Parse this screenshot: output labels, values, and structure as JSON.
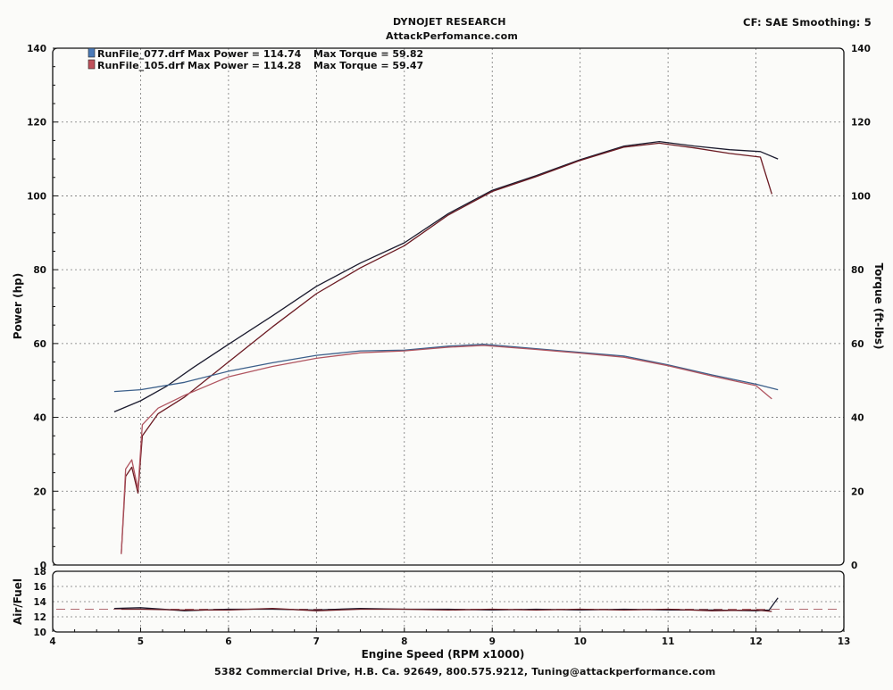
{
  "header": {
    "company": "DYNOJET RESEARCH",
    "site": "AttackPerfomance.com",
    "correction": "CF: SAE  Smoothing: 5"
  },
  "footer": {
    "address": "5382 Commercial Drive, H.B. Ca. 92649, 800.575.9212, Tuning@attackperformance.com"
  },
  "colors": {
    "run1": "#1b1b2e",
    "run2": "#6b1a22",
    "run1_tq": "#3b5f8a",
    "run2_tq": "#b05560",
    "grid": "#777777"
  },
  "chart_data": [
    {
      "type": "line",
      "ylabel": "Power (hp)",
      "y2label": "Torque (ft-lbs)",
      "xlim": [
        4,
        13
      ],
      "ylim": [
        0,
        140
      ],
      "y2lim": [
        0,
        140
      ],
      "grid": true,
      "legend_position": "top-left",
      "legend": [
        {
          "file": "RunFile_077.drf",
          "power_text": "Max Power = 114.74",
          "torque_text": "Max Torque = 59.82"
        },
        {
          "file": "RunFile_105.drf",
          "power_text": "Max Power = 114.28",
          "torque_text": "Max Torque = 59.47"
        }
      ],
      "yticks": [
        0,
        20,
        40,
        60,
        80,
        100,
        120,
        140
      ],
      "y2ticks": [
        0,
        20,
        40,
        60,
        80,
        100,
        120,
        140
      ],
      "series": [
        {
          "run": 1,
          "quantity": "power",
          "axis": "left",
          "points": [
            [
              4.7,
              41.5
            ],
            [
              5.0,
              44.5
            ],
            [
              5.3,
              48.5
            ],
            [
              5.6,
              53.5
            ],
            [
              6.0,
              59.8
            ],
            [
              6.5,
              67.5
            ],
            [
              7.0,
              75.5
            ],
            [
              7.5,
              81.8
            ],
            [
              8.0,
              87.3
            ],
            [
              8.5,
              95.2
            ],
            [
              9.0,
              101.5
            ],
            [
              9.5,
              105.5
            ],
            [
              10.0,
              109.8
            ],
            [
              10.5,
              113.5
            ],
            [
              10.9,
              114.7
            ],
            [
              11.3,
              113.5
            ],
            [
              11.7,
              112.5
            ],
            [
              12.05,
              112.0
            ],
            [
              12.25,
              110.0
            ]
          ]
        },
        {
          "run": 2,
          "quantity": "power",
          "axis": "left",
          "points": [
            [
              4.78,
              3.0
            ],
            [
              4.83,
              24.0
            ],
            [
              4.9,
              26.5
            ],
            [
              4.97,
              19.5
            ],
            [
              5.02,
              35.0
            ],
            [
              5.2,
              41.0
            ],
            [
              5.5,
              45.5
            ],
            [
              6.0,
              55.0
            ],
            [
              6.5,
              64.5
            ],
            [
              7.0,
              73.5
            ],
            [
              7.5,
              80.5
            ],
            [
              8.0,
              86.5
            ],
            [
              8.5,
              94.8
            ],
            [
              9.0,
              101.2
            ],
            [
              9.5,
              105.2
            ],
            [
              10.0,
              109.6
            ],
            [
              10.5,
              113.2
            ],
            [
              10.9,
              114.28
            ],
            [
              11.3,
              113.0
            ],
            [
              11.7,
              111.5
            ],
            [
              12.05,
              110.5
            ],
            [
              12.18,
              100.5
            ]
          ]
        },
        {
          "run": 1,
          "quantity": "torque",
          "axis": "right",
          "points": [
            [
              4.7,
              47.0
            ],
            [
              5.0,
              47.5
            ],
            [
              5.5,
              49.5
            ],
            [
              6.0,
              52.5
            ],
            [
              6.5,
              54.8
            ],
            [
              7.0,
              56.8
            ],
            [
              7.5,
              58.0
            ],
            [
              8.0,
              58.2
            ],
            [
              8.5,
              59.3
            ],
            [
              8.9,
              59.82
            ],
            [
              9.5,
              58.6
            ],
            [
              10.0,
              57.6
            ],
            [
              10.5,
              56.6
            ],
            [
              11.0,
              54.2
            ],
            [
              11.5,
              51.5
            ],
            [
              12.0,
              49.0
            ],
            [
              12.25,
              47.5
            ]
          ]
        },
        {
          "run": 2,
          "quantity": "torque",
          "axis": "right",
          "points": [
            [
              4.78,
              3.0
            ],
            [
              4.83,
              26.0
            ],
            [
              4.9,
              28.5
            ],
            [
              4.97,
              20.5
            ],
            [
              5.02,
              38.0
            ],
            [
              5.2,
              42.5
            ],
            [
              5.5,
              46.0
            ],
            [
              6.0,
              51.0
            ],
            [
              6.5,
              53.8
            ],
            [
              7.0,
              56.0
            ],
            [
              7.5,
              57.5
            ],
            [
              8.0,
              58.0
            ],
            [
              8.5,
              59.0
            ],
            [
              8.9,
              59.47
            ],
            [
              9.5,
              58.4
            ],
            [
              10.0,
              57.4
            ],
            [
              10.5,
              56.3
            ],
            [
              11.0,
              54.0
            ],
            [
              11.5,
              51.2
            ],
            [
              12.0,
              48.6
            ],
            [
              12.18,
              45.0
            ]
          ]
        }
      ]
    },
    {
      "type": "line",
      "ylabel": "Air/Fuel",
      "xlabel": "Engine Speed (RPM x1000)",
      "xlim": [
        4,
        13
      ],
      "ylim": [
        10,
        18
      ],
      "xticks": [
        4,
        5,
        6,
        7,
        8,
        9,
        10,
        11,
        12,
        13
      ],
      "yticks": [
        10,
        12,
        14,
        16,
        18
      ],
      "grid": true,
      "reference_line": 13.0,
      "series": [
        {
          "run": 1,
          "points": [
            [
              4.7,
              13.1
            ],
            [
              5.0,
              13.2
            ],
            [
              5.5,
              12.8
            ],
            [
              6.0,
              13.0
            ],
            [
              6.5,
              13.0
            ],
            [
              7.0,
              12.9
            ],
            [
              7.5,
              13.1
            ],
            [
              8.0,
              13.0
            ],
            [
              8.5,
              13.0
            ],
            [
              9.0,
              12.9
            ],
            [
              9.5,
              13.0
            ],
            [
              10.0,
              12.9
            ],
            [
              10.5,
              13.0
            ],
            [
              11.0,
              12.9
            ],
            [
              11.5,
              12.9
            ],
            [
              12.0,
              12.8
            ],
            [
              12.15,
              12.9
            ],
            [
              12.25,
              14.5
            ]
          ]
        },
        {
          "run": 2,
          "points": [
            [
              4.78,
              13.0
            ],
            [
              5.0,
              13.0
            ],
            [
              5.5,
              12.9
            ],
            [
              6.0,
              12.9
            ],
            [
              6.5,
              13.1
            ],
            [
              7.0,
              12.8
            ],
            [
              7.5,
              13.0
            ],
            [
              8.0,
              13.0
            ],
            [
              8.5,
              12.9
            ],
            [
              9.0,
              13.0
            ],
            [
              9.5,
              12.9
            ],
            [
              10.0,
              13.0
            ],
            [
              10.5,
              12.9
            ],
            [
              11.0,
              13.0
            ],
            [
              11.5,
              12.8
            ],
            [
              12.0,
              12.9
            ],
            [
              12.18,
              12.7
            ]
          ]
        }
      ]
    }
  ]
}
